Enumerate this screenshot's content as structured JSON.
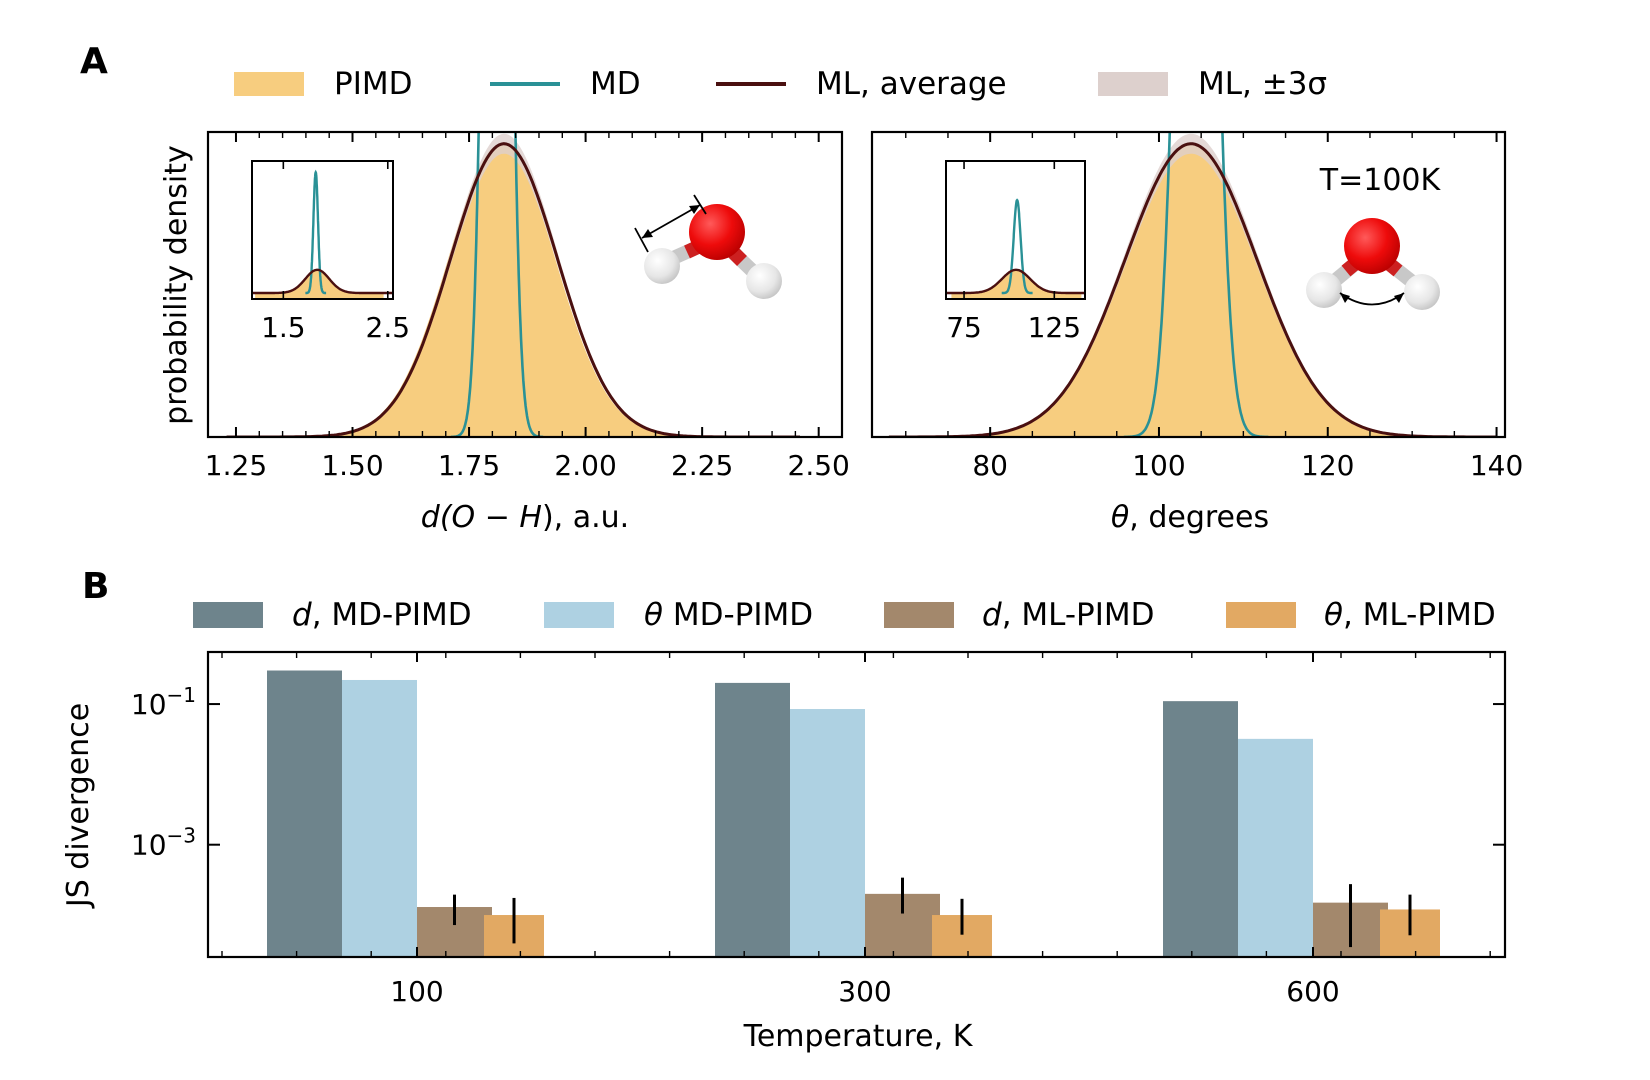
{
  "panels": {
    "a": "A",
    "b": "B"
  },
  "legend_a": [
    {
      "label": "PIMD",
      "kind": "patch",
      "color": "#f7cd7f"
    },
    {
      "label": "MD",
      "kind": "line",
      "color": "#2a9196"
    },
    {
      "label": "ML, average",
      "kind": "line",
      "color": "#4a1010"
    },
    {
      "label": "ML, ±3σ",
      "kind": "patch",
      "color": "#ddd0cd"
    }
  ],
  "legend_b": [
    {
      "label_var": "d",
      "label_rest": ", MD-PIMD",
      "color": "#6e848c"
    },
    {
      "label_var": "θ",
      "label_rest": " MD-PIMD",
      "color": "#aed1e2"
    },
    {
      "label_var": "d",
      "label_rest": ", ML-PIMD",
      "color": "#a3886c"
    },
    {
      "label_var": "θ",
      "label_rest": ", ML-PIMD",
      "color": "#e2a963"
    }
  ],
  "colors": {
    "pimd": "#f7cd7f",
    "md": "#2a9196",
    "ml": "#4a1010",
    "band": "#ddd0cd",
    "o_atom": "#ee0b0b",
    "h_atom": "#dddddd"
  },
  "chart_data": [
    {
      "type": "line",
      "panel": "A-left",
      "xlabel": {
        "pre": "d(",
        "mid": "O − H",
        "post": "), a.u."
      },
      "ylabel": "probability density",
      "xlim": [
        1.19,
        2.55
      ],
      "xticks": [
        "1.25",
        "1.50",
        "1.75",
        "2.00",
        "2.25",
        "2.50"
      ],
      "xtick_values": [
        1.25,
        1.5,
        1.75,
        2.0,
        2.25,
        2.5
      ],
      "series": [
        {
          "role": "PIMD",
          "kind": "gaussian",
          "mean": 1.82,
          "sd": 0.115,
          "peak": 1.0
        },
        {
          "role": "MD",
          "kind": "gaussian",
          "mean": 1.81,
          "sd": 0.022,
          "peak": 5.2
        },
        {
          "role": "ML average",
          "kind": "gaussian",
          "mean": 1.825,
          "sd": 0.115,
          "peak": 1.0
        }
      ],
      "inset": {
        "xlim": [
          1.2,
          2.55
        ],
        "xticks": [
          "1.5",
          "2.5"
        ],
        "xtick_values": [
          1.5,
          2.5
        ]
      }
    },
    {
      "type": "line",
      "panel": "A-right",
      "annotation": "T=100K",
      "xlabel": {
        "pre": "θ",
        "post": ", degrees"
      },
      "xlim": [
        66,
        141
      ],
      "xticks": [
        "80",
        "100",
        "120",
        "140"
      ],
      "xtick_values": [
        80,
        100,
        120,
        140
      ],
      "series": [
        {
          "role": "PIMD",
          "kind": "gaussian",
          "mean": 103.8,
          "sd": 7.7,
          "peak": 1.0
        },
        {
          "role": "MD",
          "kind": "gaussian",
          "mean": 104.4,
          "sd": 1.9,
          "peak": 4.0
        },
        {
          "role": "ML average",
          "kind": "gaussian",
          "mean": 103.8,
          "sd": 7.8,
          "peak": 1.0
        }
      ],
      "inset": {
        "xlim": [
          65,
          142
        ],
        "xticks": [
          "75",
          "125"
        ],
        "xtick_values": [
          75,
          125
        ]
      }
    },
    {
      "type": "bar",
      "panel": "B",
      "xlabel": "Temperature, K",
      "ylabel": "JS divergence",
      "yscale": "log",
      "ylim": [
        2.53e-05,
        0.55
      ],
      "yticks": [
        {
          "base": "10",
          "exp": "−1",
          "value": 0.1
        },
        {
          "base": "10",
          "exp": "−3",
          "value": 0.001
        }
      ],
      "categories": [
        "100",
        "300",
        "600"
      ],
      "series": [
        {
          "name": "d, MD-PIMD",
          "values": [
            0.3,
            0.2,
            0.11
          ]
        },
        {
          "name": "θ MD-PIMD",
          "values": [
            0.22,
            0.085,
            0.032
          ]
        },
        {
          "name": "d, ML-PIMD",
          "values": [
            0.00013,
            0.0002,
            0.00015
          ],
          "err_low": [
            7.2e-05,
            0.000105,
            3.5e-05
          ],
          "err_high": [
            0.000195,
            0.00034,
            0.000275
          ]
        },
        {
          "name": "θ, ML-PIMD",
          "values": [
            0.0001,
            0.0001,
            0.00012
          ],
          "err_low": [
            3.95e-05,
            5.25e-05,
            5.15e-05
          ],
          "err_high": [
            0.000175,
            0.00017,
            0.000195
          ]
        }
      ]
    }
  ]
}
